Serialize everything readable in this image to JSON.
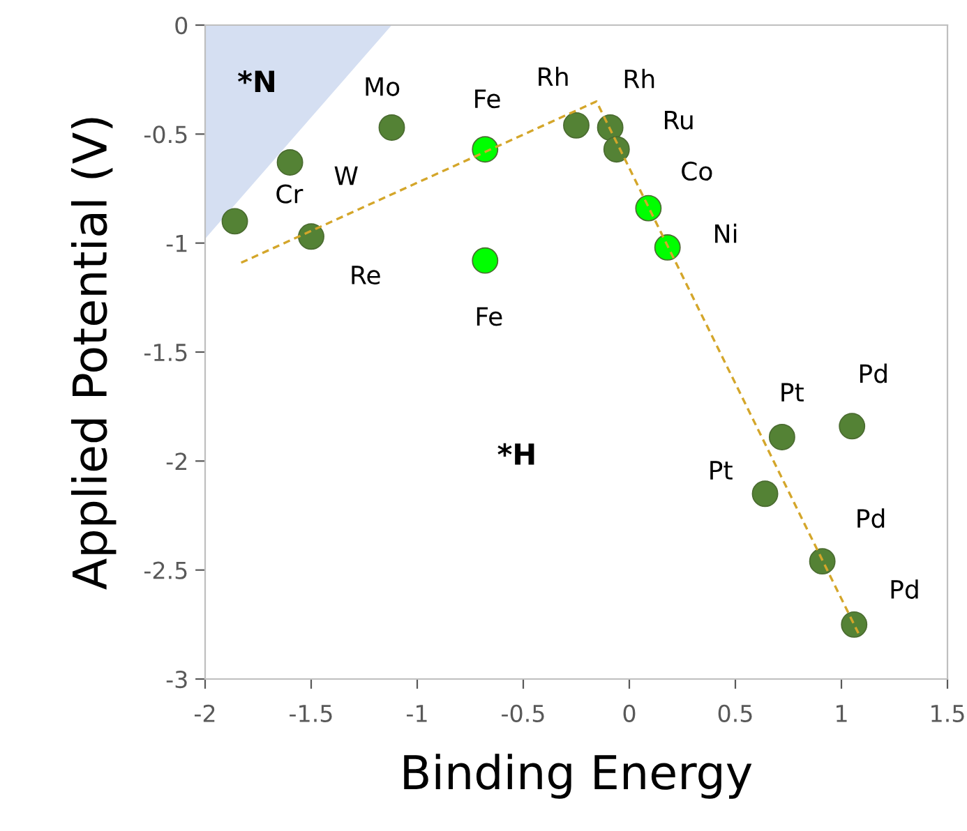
{
  "chart_data": {
    "type": "scatter",
    "xlabel": "Binding Energy",
    "ylabel": "Applied Potential (V)",
    "xlim": [
      -2,
      1.5
    ],
    "xticks": [
      -2,
      -1.5,
      -1,
      -0.5,
      0,
      0.5,
      1,
      1.5
    ],
    "ylim": [
      -3,
      0
    ],
    "yticks": [
      -3,
      -2.5,
      -2,
      -1.5,
      -1,
      -0.5,
      0
    ],
    "grid": false,
    "legend": false,
    "series": [
      {
        "type": "area",
        "color": "#d5dff2",
        "x": [
          -2,
          -1.12
        ],
        "values": [
          -0.98,
          0
        ]
      },
      {
        "type": "line",
        "color": "#d4a62a",
        "line_style": "dashed",
        "marker": "none",
        "x": [
          -1.83,
          -0.155,
          1.08
        ],
        "values": [
          -1.09,
          -0.35,
          -2.79
        ]
      },
      {
        "marker": "circle",
        "color": "#548235",
        "x": [
          -1.86,
          -1.6,
          -1.5,
          -1.12,
          -0.25,
          -0.09,
          -0.06,
          0.72,
          1.05,
          0.64,
          0.91,
          1.06
        ],
        "values": [
          -0.9,
          -0.63,
          -0.97,
          -0.47,
          -0.46,
          -0.47,
          -0.57,
          -1.89,
          -1.84,
          -2.15,
          -2.46,
          -2.75
        ]
      },
      {
        "marker": "circle",
        "color": "#00ff00",
        "x": [
          -0.68,
          -0.68,
          0.09,
          0.18
        ],
        "values": [
          -0.57,
          -1.08,
          -0.84,
          -1.02
        ]
      }
    ],
    "annotations": [
      {
        "text": "Cr",
        "x": -1.86,
        "y": -0.9
      },
      {
        "text": "W",
        "x": -1.6,
        "y": -0.63
      },
      {
        "text": "Re",
        "x": -1.5,
        "y": -0.97
      },
      {
        "text": "Mo",
        "x": -1.12,
        "y": -0.47
      },
      {
        "text": "Fe",
        "x": -0.68,
        "y": -0.57
      },
      {
        "text": "Fe",
        "x": -0.68,
        "y": -1.08
      },
      {
        "text": "Rh",
        "x": -0.25,
        "y": -0.46
      },
      {
        "text": "Rh",
        "x": -0.09,
        "y": -0.47
      },
      {
        "text": "Ru",
        "x": -0.06,
        "y": -0.57
      },
      {
        "text": "Co",
        "x": 0.09,
        "y": -0.84
      },
      {
        "text": "Ni",
        "x": 0.18,
        "y": -1.02
      },
      {
        "text": "Pt",
        "x": 0.72,
        "y": -1.89
      },
      {
        "text": "Pd",
        "x": 1.05,
        "y": -1.84
      },
      {
        "text": "Pt",
        "x": 0.64,
        "y": -2.15
      },
      {
        "text": "Pd",
        "x": 0.91,
        "y": -2.46
      },
      {
        "text": "Pd",
        "x": 1.06,
        "y": -2.75
      },
      "*N",
      "*H"
    ]
  }
}
